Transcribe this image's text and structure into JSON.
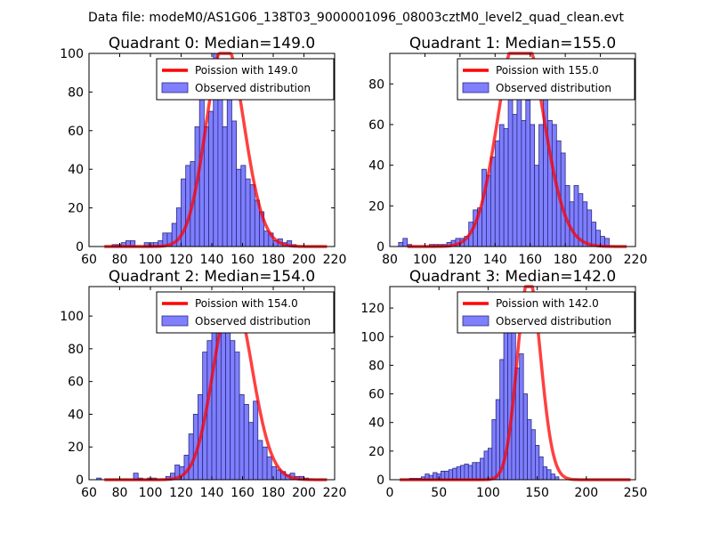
{
  "figure_title": "Data file: modeM0/AS1G06_138T03_9000001096_08003cztM0_level2_quad_clean.evt",
  "colors": {
    "hist_fill": "#7f7fff",
    "hist_edge": "#2a2a80",
    "fit_line": "#ff0000"
  },
  "chart_data": [
    {
      "type": "bar",
      "title": "Quadrant 0: Median=149.0",
      "xlim": [
        60,
        220
      ],
      "ylim": [
        0,
        100
      ],
      "xticks": [
        60,
        80,
        100,
        120,
        140,
        160,
        180,
        200,
        220
      ],
      "yticks": [
        0,
        20,
        40,
        60,
        80,
        100
      ],
      "bin_width": 3,
      "bin_start": 75,
      "counts": [
        1,
        1,
        2,
        3,
        3,
        0,
        0,
        2,
        2,
        2,
        3,
        7,
        7,
        12,
        20,
        35,
        42,
        44,
        62,
        96,
        62,
        70,
        100,
        76,
        62,
        82,
        65,
        40,
        42,
        35,
        32,
        24,
        18,
        8,
        7,
        3,
        4,
        2,
        3,
        1
      ],
      "median": 149.0,
      "series": [
        {
          "name": "Poission with 149.0",
          "type": "line",
          "mean": 149.0
        },
        {
          "name": "Observed distribution",
          "type": "bar"
        }
      ]
    },
    {
      "type": "bar",
      "title": "Quadrant 1: Median=155.0",
      "xlim": [
        80,
        220
      ],
      "ylim": [
        0,
        95
      ],
      "xticks": [
        80,
        100,
        120,
        140,
        160,
        180,
        200,
        220
      ],
      "yticks": [
        0,
        20,
        40,
        60,
        80
      ],
      "bin_width": 2.5,
      "bin_start": 85,
      "counts": [
        2,
        4,
        1,
        0,
        0,
        0,
        0,
        1,
        1,
        1,
        1,
        2,
        3,
        4,
        4,
        5,
        12,
        18,
        19,
        38,
        35,
        44,
        52,
        60,
        58,
        92,
        65,
        86,
        62,
        72,
        60,
        40,
        60,
        80,
        62,
        60,
        52,
        46,
        30,
        22,
        30,
        26,
        22,
        18,
        12,
        8,
        5,
        4
      ],
      "median": 155.0,
      "series": [
        {
          "name": "Poission with 155.0",
          "type": "line",
          "mean": 155.0
        },
        {
          "name": "Observed distribution",
          "type": "bar"
        }
      ]
    },
    {
      "type": "bar",
      "title": "Quadrant 2: Median=154.0",
      "xlim": [
        60,
        220
      ],
      "ylim": [
        0,
        118
      ],
      "xticks": [
        60,
        80,
        100,
        120,
        140,
        160,
        180,
        200,
        220
      ],
      "yticks": [
        0,
        20,
        40,
        60,
        80,
        100
      ],
      "bin_width": 3,
      "bin_start": 65,
      "counts": [
        1,
        0,
        0,
        0,
        0,
        0,
        0,
        0,
        4,
        1,
        0,
        1,
        1,
        0,
        0,
        2,
        4,
        9,
        8,
        15,
        28,
        40,
        52,
        78,
        85,
        100,
        110,
        102,
        110,
        85,
        78,
        52,
        46,
        35,
        48,
        24,
        20,
        14,
        8,
        6,
        5,
        3,
        4,
        2,
        2,
        1
      ],
      "median": 154.0,
      "series": [
        {
          "name": "Poission with 154.0",
          "type": "line",
          "mean": 154.0
        },
        {
          "name": "Observed distribution",
          "type": "bar"
        }
      ]
    },
    {
      "type": "bar",
      "title": "Quadrant 3: Median=142.0",
      "xlim": [
        0,
        250
      ],
      "ylim": [
        0,
        135
      ],
      "xticks": [
        0,
        50,
        100,
        150,
        200,
        250
      ],
      "yticks": [
        0,
        20,
        40,
        60,
        80,
        100,
        120
      ],
      "bin_width": 4,
      "bin_start": 20,
      "counts": [
        1,
        1,
        1,
        2,
        4,
        3,
        5,
        4,
        6,
        6,
        7,
        8,
        9,
        10,
        11,
        10,
        12,
        12,
        15,
        20,
        22,
        42,
        56,
        84,
        112,
        120,
        104,
        78,
        88,
        60,
        42,
        35,
        24,
        16,
        9,
        7,
        4,
        2
      ],
      "median": 142.0,
      "series": [
        {
          "name": "Poission with 142.0",
          "type": "line",
          "mean": 142.0
        },
        {
          "name": "Observed distribution",
          "type": "bar"
        }
      ]
    }
  ]
}
